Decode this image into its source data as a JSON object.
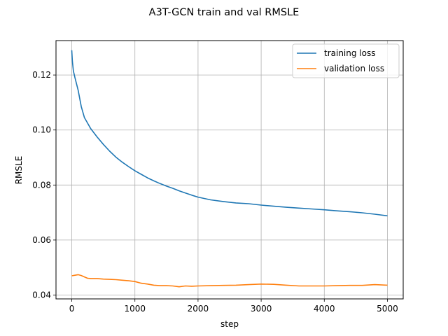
{
  "chart_data": {
    "type": "line",
    "title": "A3T-GCN train and val RMSLE",
    "xlabel": "step",
    "ylabel": "RMSLE",
    "xlim": [
      -250,
      5250
    ],
    "ylim": [
      0.0386,
      0.1325
    ],
    "xticks": [
      0,
      1000,
      2000,
      3000,
      4000,
      5000
    ],
    "xtick_labels": [
      "0",
      "1000",
      "2000",
      "3000",
      "4000",
      "5000"
    ],
    "yticks": [
      0.04,
      0.06,
      0.08,
      0.1,
      0.12
    ],
    "ytick_labels": [
      "0.04",
      "0.06",
      "0.08",
      "0.10",
      "0.12"
    ],
    "grid": true,
    "legend_position": "top-right",
    "series": [
      {
        "name": "training loss",
        "color": "#1f77b4",
        "x": [
          0,
          10,
          25,
          50,
          100,
          150,
          200,
          250,
          300,
          400,
          500,
          600,
          700,
          800,
          900,
          1000,
          1100,
          1200,
          1300,
          1400,
          1500,
          1600,
          1700,
          1800,
          1900,
          2000,
          2200,
          2400,
          2600,
          2800,
          3000,
          3200,
          3400,
          3600,
          3800,
          4000,
          4200,
          4400,
          4600,
          4800,
          5000
        ],
        "y": [
          0.129,
          0.125,
          0.1215,
          0.119,
          0.1145,
          0.1085,
          0.1045,
          0.1025,
          0.1005,
          0.0975,
          0.0948,
          0.0923,
          0.0901,
          0.0883,
          0.0867,
          0.0852,
          0.0839,
          0.0826,
          0.0815,
          0.0805,
          0.0796,
          0.0788,
          0.0779,
          0.0771,
          0.0763,
          0.0756,
          0.0746,
          0.074,
          0.0735,
          0.0732,
          0.0727,
          0.0723,
          0.0719,
          0.0716,
          0.0713,
          0.071,
          0.0706,
          0.0703,
          0.0699,
          0.0694,
          0.0688
        ]
      },
      {
        "name": "validation loss",
        "color": "#ff7f0e",
        "x": [
          0,
          50,
          100,
          150,
          200,
          250,
          300,
          400,
          500,
          600,
          700,
          800,
          900,
          1000,
          1100,
          1200,
          1300,
          1400,
          1500,
          1600,
          1700,
          1800,
          1900,
          2000,
          2200,
          2400,
          2600,
          2800,
          3000,
          3200,
          3400,
          3600,
          3800,
          4000,
          4200,
          4400,
          4600,
          4800,
          5000
        ],
        "y": [
          0.047,
          0.0472,
          0.0474,
          0.0471,
          0.0466,
          0.0461,
          0.046,
          0.046,
          0.0458,
          0.0457,
          0.0456,
          0.0454,
          0.0452,
          0.0449,
          0.0443,
          0.044,
          0.0436,
          0.0434,
          0.0434,
          0.0433,
          0.043,
          0.0433,
          0.0432,
          0.0433,
          0.0434,
          0.0435,
          0.0436,
          0.0438,
          0.044,
          0.0439,
          0.0436,
          0.0433,
          0.0433,
          0.0433,
          0.0434,
          0.0435,
          0.0435,
          0.0438,
          0.0436
        ]
      }
    ]
  }
}
